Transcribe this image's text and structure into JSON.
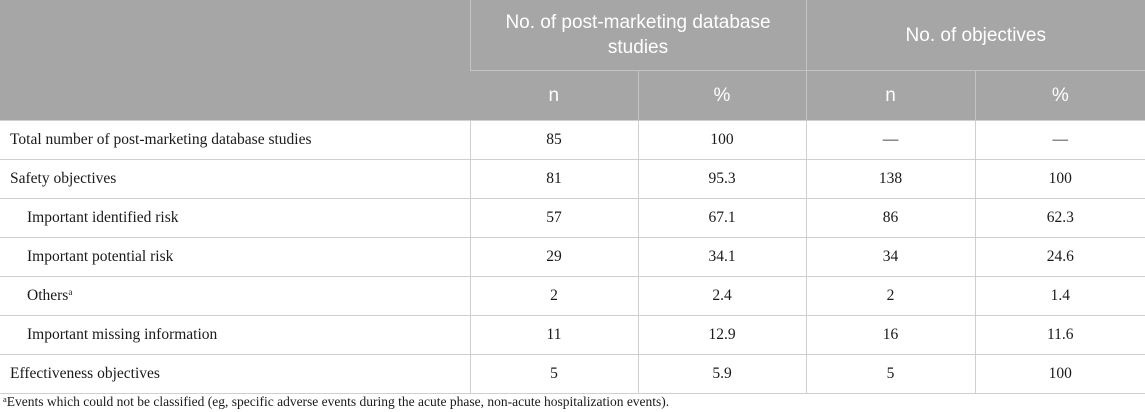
{
  "table": {
    "group_headers": [
      "No. of post-marketing database studies",
      "No. of objectives"
    ],
    "sub_headers": [
      "n",
      "%",
      "n",
      "%"
    ],
    "rows": [
      {
        "label": "Total number of post-marketing database studies",
        "sup": "",
        "indent": false,
        "values": [
          "85",
          "100",
          "—",
          "—"
        ]
      },
      {
        "label": "Safety objectives",
        "sup": "",
        "indent": false,
        "values": [
          "81",
          "95.3",
          "138",
          "100"
        ]
      },
      {
        "label": "Important identified risk",
        "sup": "",
        "indent": true,
        "values": [
          "57",
          "67.1",
          "86",
          "62.3"
        ]
      },
      {
        "label": "Important potential risk",
        "sup": "",
        "indent": true,
        "values": [
          "29",
          "34.1",
          "34",
          "24.6"
        ]
      },
      {
        "label": "Others",
        "sup": "a",
        "indent": true,
        "values": [
          "2",
          "2.4",
          "2",
          "1.4"
        ]
      },
      {
        "label": "Important missing information",
        "sup": "",
        "indent": true,
        "values": [
          "11",
          "12.9",
          "16",
          "11.6"
        ]
      },
      {
        "label": "Effectiveness objectives",
        "sup": "",
        "indent": false,
        "values": [
          "5",
          "5.9",
          "5",
          "100"
        ]
      }
    ]
  },
  "footnote": {
    "marker": "a",
    "text": "Events which could not be classified (eg, specific adverse events during the acute phase, non-acute hospitalization events)."
  },
  "colors": {
    "header_bg": "#a6a6a6",
    "header_text": "#ffffff",
    "grid_line": "#cfcfcf",
    "body_text": "#1a1a1a"
  }
}
